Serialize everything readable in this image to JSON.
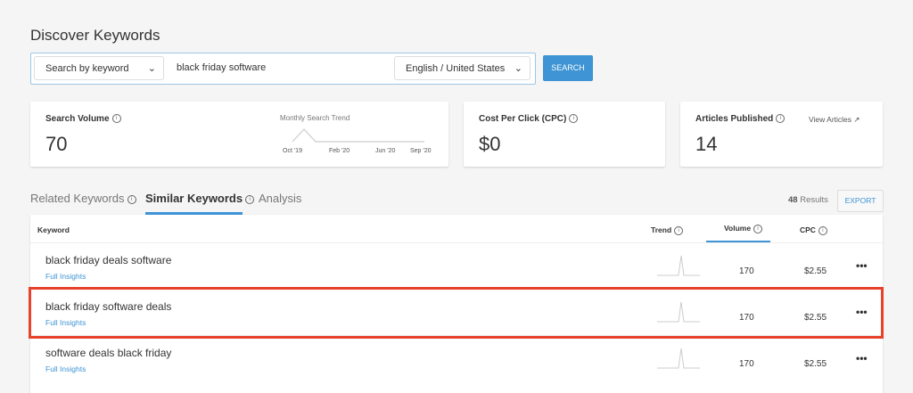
{
  "page_title": "Discover Keywords",
  "search": {
    "mode": "Search by keyword",
    "query": "black friday software",
    "locale": "English / United States",
    "button": "SEARCH"
  },
  "cards": {
    "search_volume": {
      "title": "Search Volume",
      "value": "70",
      "trend_title": "Monthly Search Trend",
      "trend_labels": [
        "Oct '19",
        "Feb '20",
        "Jun '20",
        "Sep '20"
      ]
    },
    "cpc": {
      "title": "Cost Per Click (CPC)",
      "value": "$0"
    },
    "articles": {
      "title": "Articles Published",
      "value": "14",
      "link": "View Articles"
    }
  },
  "tabs": [
    {
      "label": "Related Keywords"
    },
    {
      "label": "Similar Keywords",
      "active": true
    },
    {
      "label": "Analysis"
    }
  ],
  "results": {
    "count": "48",
    "label": "Results",
    "export": "EXPORT"
  },
  "table": {
    "headers": {
      "keyword": "Keyword",
      "trend": "Trend",
      "volume": "Volume",
      "cpc": "CPC"
    },
    "rows": [
      {
        "keyword": "black friday deals software",
        "link": "Full Insights",
        "volume": "170",
        "cpc": "$2.55"
      },
      {
        "keyword": "black friday software deals",
        "link": "Full Insights",
        "volume": "170",
        "cpc": "$2.55",
        "highlighted": true
      },
      {
        "keyword": "software deals black friday",
        "link": "Full Insights",
        "volume": "170",
        "cpc": "$2.55"
      }
    ]
  },
  "colors": {
    "accent": "#3e94d4",
    "highlight": "#e8412c"
  }
}
